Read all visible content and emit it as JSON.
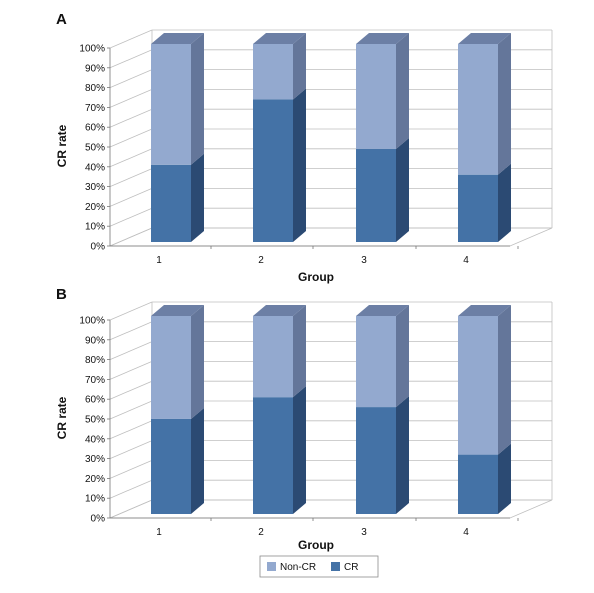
{
  "colors": {
    "cr_front": "#4472a6",
    "cr_side": "#2b4a73",
    "cr_top": "#36608d",
    "noncr_front": "#93a9cf",
    "noncr_side": "#64769a",
    "noncr_top": "#6c7fa5",
    "grid": "#bfbfbf",
    "axis": "#777777"
  },
  "legend": [
    {
      "name": "Non-CR",
      "color": "#93a9cf"
    },
    {
      "name": "CR",
      "color": "#4472a6"
    }
  ],
  "chart_data": [
    {
      "panel": "A",
      "type": "bar",
      "stacked": true,
      "three_d": true,
      "categories": [
        "1",
        "2",
        "3",
        "4"
      ],
      "series": [
        {
          "name": "CR",
          "values": [
            39,
            72,
            47,
            34
          ]
        },
        {
          "name": "Non-CR",
          "values": [
            61,
            28,
            53,
            66
          ]
        }
      ],
      "xlabel": "Group",
      "ylabel": "CR rate",
      "ylim": [
        0,
        100
      ],
      "yticks": [
        "0%",
        "10%",
        "20%",
        "30%",
        "40%",
        "50%",
        "60%",
        "70%",
        "80%",
        "90%",
        "100%"
      ],
      "grid": true
    },
    {
      "panel": "B",
      "type": "bar",
      "stacked": true,
      "three_d": true,
      "categories": [
        "1",
        "2",
        "3",
        "4"
      ],
      "series": [
        {
          "name": "CR",
          "values": [
            48,
            59,
            54,
            30
          ]
        },
        {
          "name": "Non-CR",
          "values": [
            52,
            41,
            46,
            70
          ]
        }
      ],
      "xlabel": "Group",
      "ylabel": "CR rate",
      "ylim": [
        0,
        100
      ],
      "yticks": [
        "0%",
        "10%",
        "20%",
        "30%",
        "40%",
        "50%",
        "60%",
        "70%",
        "80%",
        "90%",
        "100%"
      ],
      "grid": true,
      "legend_position": "bottom"
    }
  ]
}
